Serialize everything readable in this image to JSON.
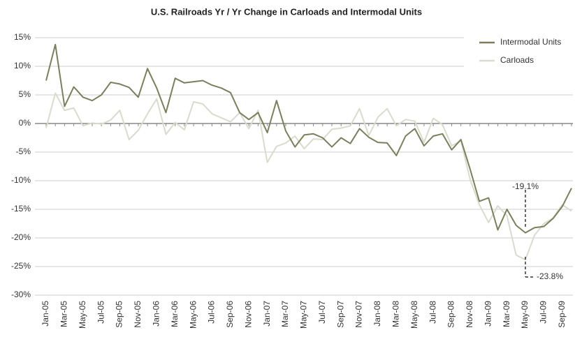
{
  "chart_data": {
    "type": "line",
    "title": "U.S. Railroads Yr / Yr Change in Carloads and Intermodal Units",
    "categories": [
      "Jan-05",
      null,
      "Mar-05",
      null,
      "May-05",
      null,
      "Jul-05",
      null,
      "Sep-05",
      null,
      "Nov-05",
      null,
      "Jan-06",
      null,
      "Mar-06",
      null,
      "May-06",
      null,
      "Jul-06",
      null,
      "Sep-06",
      null,
      "Nov-06",
      null,
      "Jan-07",
      null,
      "Mar-07",
      null,
      "May-07",
      null,
      "Jul-07",
      null,
      "Sep-07",
      null,
      "Nov-07",
      null,
      "Jan-08",
      null,
      "Mar-08",
      null,
      "May-08",
      null,
      "Jul-08",
      null,
      "Sep-08",
      null,
      "Nov-08",
      null,
      "Jan-09",
      null,
      "Mar-09",
      null,
      "May-09",
      null,
      "Jul-09",
      null,
      "Sep-09",
      null
    ],
    "series": [
      {
        "name": "Intermodal Units",
        "color": "#7b7f5b",
        "values": [
          7.5,
          13.8,
          3.0,
          6.4,
          4.6,
          4.0,
          5.0,
          7.2,
          6.9,
          6.3,
          4.6,
          9.6,
          6.2,
          1.9,
          7.9,
          7.1,
          7.3,
          7.5,
          6.7,
          6.2,
          5.4,
          1.9,
          0.7,
          1.9,
          -1.6,
          4.0,
          -1.3,
          -4.1,
          -2.0,
          -1.8,
          -2.5,
          -4.1,
          -2.5,
          -3.5,
          -0.9,
          -2.4,
          -3.3,
          -3.4,
          -5.6,
          -2.2,
          -0.9,
          -3.9,
          -2.2,
          -1.8,
          -4.6,
          -2.8,
          -8.0,
          -13.6,
          -13.0,
          -18.6,
          -15.0,
          -17.8,
          -19.1,
          -18.2,
          -18.0,
          -16.6,
          -14.5,
          -11.3
        ]
      },
      {
        "name": "Carloads",
        "color": "#d9dbcc",
        "values": [
          -0.8,
          5.3,
          2.3,
          2.7,
          -0.4,
          0.1,
          -0.1,
          0.6,
          2.3,
          -2.8,
          -1.2,
          1.7,
          4.3,
          -1.9,
          0.2,
          -1.1,
          3.8,
          3.4,
          1.7,
          1.0,
          0.3,
          1.9,
          -0.9,
          2.3,
          -6.8,
          -4.0,
          -3.4,
          -2.2,
          -4.4,
          -2.7,
          -2.8,
          -1.0,
          -0.8,
          -0.4,
          2.6,
          -2.1,
          1.1,
          2.6,
          -0.4,
          0.7,
          0.4,
          -3.3,
          0.9,
          -0.2,
          -3.9,
          -3.0,
          -9.8,
          -14.2,
          -17.3,
          -14.4,
          -16.1,
          -23.0,
          -23.8,
          -19.5,
          -17.5,
          -16.5,
          -14.2,
          -15.3
        ]
      }
    ],
    "ylim": [
      -30,
      15
    ],
    "yticks": [
      {
        "value": -30,
        "label": "-30%"
      },
      {
        "value": -25,
        "label": "-25%"
      },
      {
        "value": -20,
        "label": "-20%"
      },
      {
        "value": -15,
        "label": "-15%"
      },
      {
        "value": -10,
        "label": "-10%"
      },
      {
        "value": -5,
        "label": "-5%"
      },
      {
        "value": 0,
        "label": "0%"
      },
      {
        "value": 5,
        "label": "5%"
      },
      {
        "value": 10,
        "label": "10%"
      },
      {
        "value": 15,
        "label": "15%"
      }
    ],
    "grid": true,
    "legend": "top-right",
    "annotations": [
      "-19.1%",
      "-23.8%"
    ]
  }
}
